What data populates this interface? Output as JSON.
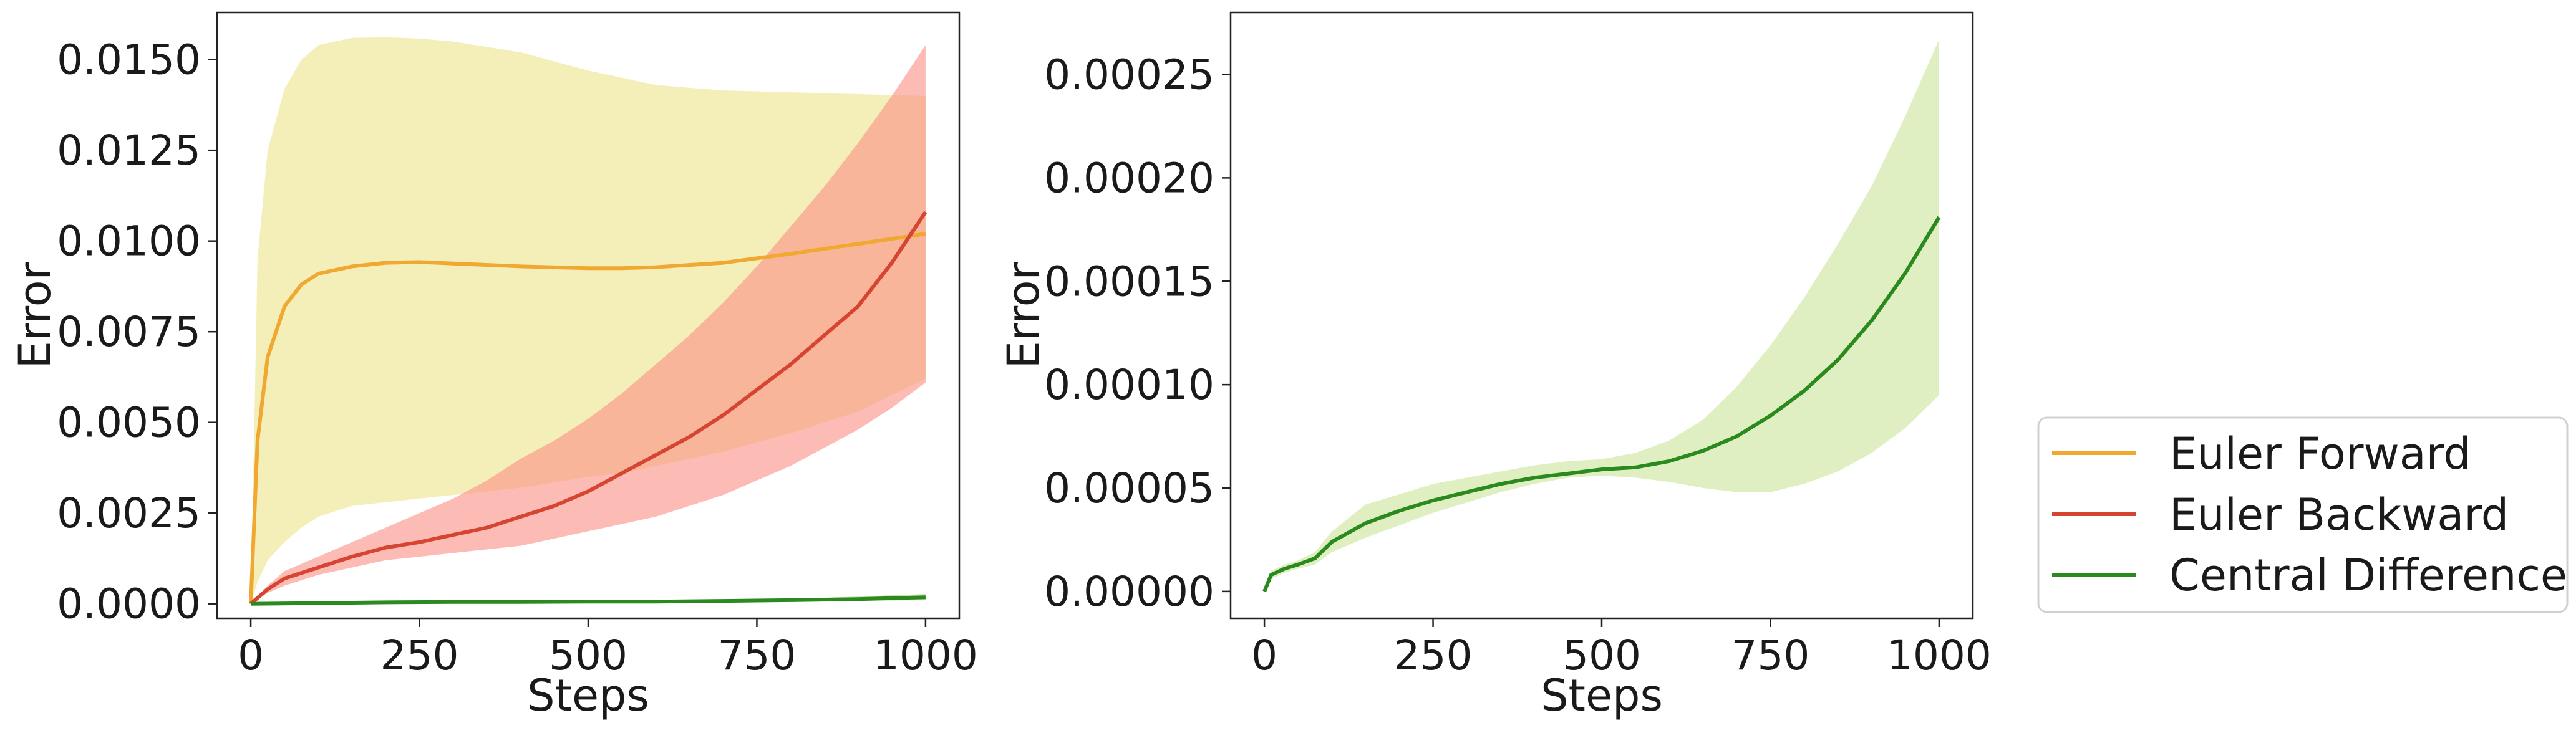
{
  "chart_data": [
    {
      "type": "line",
      "title": "",
      "xlabel": "Steps",
      "ylabel": "Error",
      "xlim": [
        -50,
        1050
      ],
      "ylim": [
        -0.0004,
        0.0163
      ],
      "xticks": [
        0,
        250,
        500,
        750,
        1000
      ],
      "xtick_labels": [
        "0",
        "250",
        "500",
        "750",
        "1000"
      ],
      "yticks": [
        0,
        0.0025,
        0.005,
        0.0075,
        0.01,
        0.0125,
        0.015
      ],
      "ytick_labels": [
        "0.0000",
        "0.0025",
        "0.0050",
        "0.0075",
        "0.0100",
        "0.0125",
        "0.0150"
      ],
      "grid": false,
      "series": [
        {
          "name": "Euler Forward",
          "color": "#f0a830",
          "band_color": "#ede48a",
          "x": [
            0,
            10,
            25,
            50,
            75,
            100,
            150,
            200,
            250,
            300,
            400,
            500,
            550,
            600,
            700,
            800,
            900,
            1000
          ],
          "mean": [
            0,
            0.0045,
            0.0068,
            0.0082,
            0.0088,
            0.0091,
            0.0093,
            0.0094,
            0.00942,
            0.00938,
            0.0093,
            0.00925,
            0.00925,
            0.00928,
            0.0094,
            0.00965,
            0.00992,
            0.0102
          ],
          "lower": [
            0,
            0.0006,
            0.0012,
            0.0017,
            0.0021,
            0.0024,
            0.0027,
            0.0028,
            0.0029,
            0.003,
            0.0032,
            0.0035,
            0.0036,
            0.0038,
            0.0042,
            0.0047,
            0.0053,
            0.0062
          ],
          "upper": [
            0,
            0.0095,
            0.0125,
            0.0142,
            0.015,
            0.0154,
            0.0156,
            0.01562,
            0.01558,
            0.0155,
            0.0152,
            0.0147,
            0.0145,
            0.0143,
            0.01415,
            0.0141,
            0.01405,
            0.014
          ]
        },
        {
          "name": "Euler Backward",
          "color": "#d64532",
          "band_color": "#fa8e84",
          "x": [
            0,
            25,
            50,
            100,
            150,
            200,
            250,
            300,
            350,
            400,
            450,
            500,
            550,
            600,
            650,
            700,
            750,
            800,
            850,
            900,
            950,
            1000
          ],
          "mean": [
            0,
            0.0004,
            0.0007,
            0.001,
            0.0013,
            0.00155,
            0.0017,
            0.0019,
            0.0021,
            0.0024,
            0.0027,
            0.0031,
            0.0036,
            0.0041,
            0.0046,
            0.0052,
            0.0059,
            0.0066,
            0.0074,
            0.0082,
            0.0094,
            0.0108
          ],
          "lower": [
            0,
            0.0003,
            0.0005,
            0.0008,
            0.001,
            0.0012,
            0.0013,
            0.0014,
            0.0015,
            0.0016,
            0.0018,
            0.002,
            0.0022,
            0.0024,
            0.0027,
            0.003,
            0.0034,
            0.0038,
            0.0043,
            0.0048,
            0.0054,
            0.0061
          ],
          "upper": [
            0,
            0.0005,
            0.0009,
            0.0013,
            0.0017,
            0.0021,
            0.0025,
            0.0029,
            0.0034,
            0.004,
            0.0045,
            0.0051,
            0.0058,
            0.0066,
            0.0074,
            0.0083,
            0.0093,
            0.0104,
            0.0115,
            0.0127,
            0.014,
            0.0154
          ]
        },
        {
          "name": "Central Difference",
          "color": "#2a8a1e",
          "band_color": "#a3d36a",
          "x": [
            0,
            100,
            200,
            300,
            400,
            500,
            600,
            700,
            800,
            900,
            1000
          ],
          "mean": [
            0,
            2e-05,
            4e-05,
            5e-05,
            5e-05,
            6e-05,
            6e-05,
            8e-05,
            0.0001,
            0.00013,
            0.00018
          ],
          "lower": [
            0,
            2e-05,
            3e-05,
            4e-05,
            5e-05,
            5e-05,
            5e-05,
            5e-05,
            6e-05,
            8e-05,
            0.0001
          ],
          "upper": [
            0,
            3e-05,
            4e-05,
            5e-05,
            6e-05,
            6e-05,
            7e-05,
            0.0001,
            0.00014,
            0.0002,
            0.00027
          ]
        }
      ]
    },
    {
      "type": "line",
      "title": "",
      "xlabel": "Steps",
      "ylabel": "Error",
      "xlim": [
        -50,
        1050
      ],
      "ylim": [
        -1.3e-05,
        0.00028
      ],
      "xticks": [
        0,
        250,
        500,
        750,
        1000
      ],
      "xtick_labels": [
        "0",
        "250",
        "500",
        "750",
        "1000"
      ],
      "yticks": [
        0,
        5e-05,
        0.0001,
        0.00015,
        0.0002,
        0.00025
      ],
      "ytick_labels": [
        "0.00000",
        "0.00005",
        "0.00010",
        "0.00015",
        "0.00020",
        "0.00025"
      ],
      "grid": false,
      "series": [
        {
          "name": "Central Difference",
          "color": "#2a8a1e",
          "band_color": "#c9e49a",
          "x": [
            0,
            10,
            30,
            50,
            75,
            100,
            150,
            200,
            250,
            300,
            350,
            400,
            450,
            500,
            550,
            600,
            650,
            700,
            750,
            800,
            850,
            900,
            950,
            1000
          ],
          "mean": [
            0,
            8e-06,
            1.1e-05,
            1.3e-05,
            1.6e-05,
            2.4e-05,
            3.3e-05,
            3.9e-05,
            4.4e-05,
            4.8e-05,
            5.2e-05,
            5.5e-05,
            5.7e-05,
            5.9e-05,
            6e-05,
            6.3e-05,
            6.8e-05,
            7.5e-05,
            8.5e-05,
            9.7e-05,
            0.000112,
            0.000131,
            0.000154,
            0.000181
          ],
          "lower": [
            0,
            6e-06,
            9e-06,
            1.1e-05,
            1.3e-05,
            1.9e-05,
            2.6e-05,
            3.2e-05,
            3.8e-05,
            4.3e-05,
            4.8e-05,
            5.2e-05,
            5.5e-05,
            5.6e-05,
            5.5e-05,
            5.3e-05,
            5e-05,
            4.8e-05,
            4.8e-05,
            5.2e-05,
            5.8e-05,
            6.7e-05,
            7.9e-05,
            9.5e-05
          ],
          "upper": [
            0,
            1e-05,
            1.3e-05,
            1.5e-05,
            1.9e-05,
            2.9e-05,
            4.2e-05,
            4.7e-05,
            5.2e-05,
            5.5e-05,
            5.8e-05,
            6.1e-05,
            6.3e-05,
            6.4e-05,
            6.7e-05,
            7.3e-05,
            8.3e-05,
            9.9e-05,
            0.000119,
            0.000142,
            0.000168,
            0.000196,
            0.00023,
            0.000267
          ]
        }
      ]
    }
  ],
  "legend": {
    "placement": "bottom-right",
    "entries": [
      {
        "label": "Euler Forward",
        "color": "#f0a830"
      },
      {
        "label": "Euler Backward",
        "color": "#d64532"
      },
      {
        "label": "Central Difference",
        "color": "#2a8a1e"
      }
    ]
  }
}
